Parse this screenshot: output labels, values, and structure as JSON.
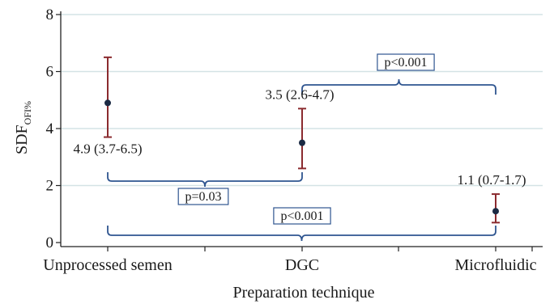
{
  "chart_data": {
    "type": "scatter",
    "title": "",
    "xlabel": "Preparation technique",
    "ylabel": {
      "main": "SDF",
      "sub": "OFI%"
    },
    "ylim": [
      0,
      8
    ],
    "yticks": [
      0,
      2,
      4,
      6,
      8
    ],
    "grid": "horizontal",
    "categories": [
      "Unprocessed semen",
      "DGC",
      "Microfluidic"
    ],
    "points": [
      {
        "category": "Unprocessed semen",
        "value": 4.9,
        "lower": 3.7,
        "upper": 6.5,
        "label": "4.9 (3.7-6.5)"
      },
      {
        "category": "DGC",
        "value": 3.5,
        "lower": 2.6,
        "upper": 4.7,
        "label": "3.5 (2.6-4.7)"
      },
      {
        "category": "Microfluidic",
        "value": 1.1,
        "lower": 0.7,
        "upper": 1.7,
        "label": "1.1 (0.7-1.7)"
      }
    ],
    "comparisons": [
      {
        "from": "DGC",
        "to": "Microfluidic",
        "label": "p<0.001"
      },
      {
        "from": "Unprocessed semen",
        "to": "DGC",
        "label": "p=0.03"
      },
      {
        "from": "Unprocessed semen",
        "to": "Microfluidic",
        "label": "p<0.001"
      }
    ],
    "colors": {
      "grid": "#d4e3e5",
      "errorbar": "#8b2b2f",
      "point": "#1b2a44",
      "bracket": "#2f5590",
      "axis": "#222222"
    }
  }
}
